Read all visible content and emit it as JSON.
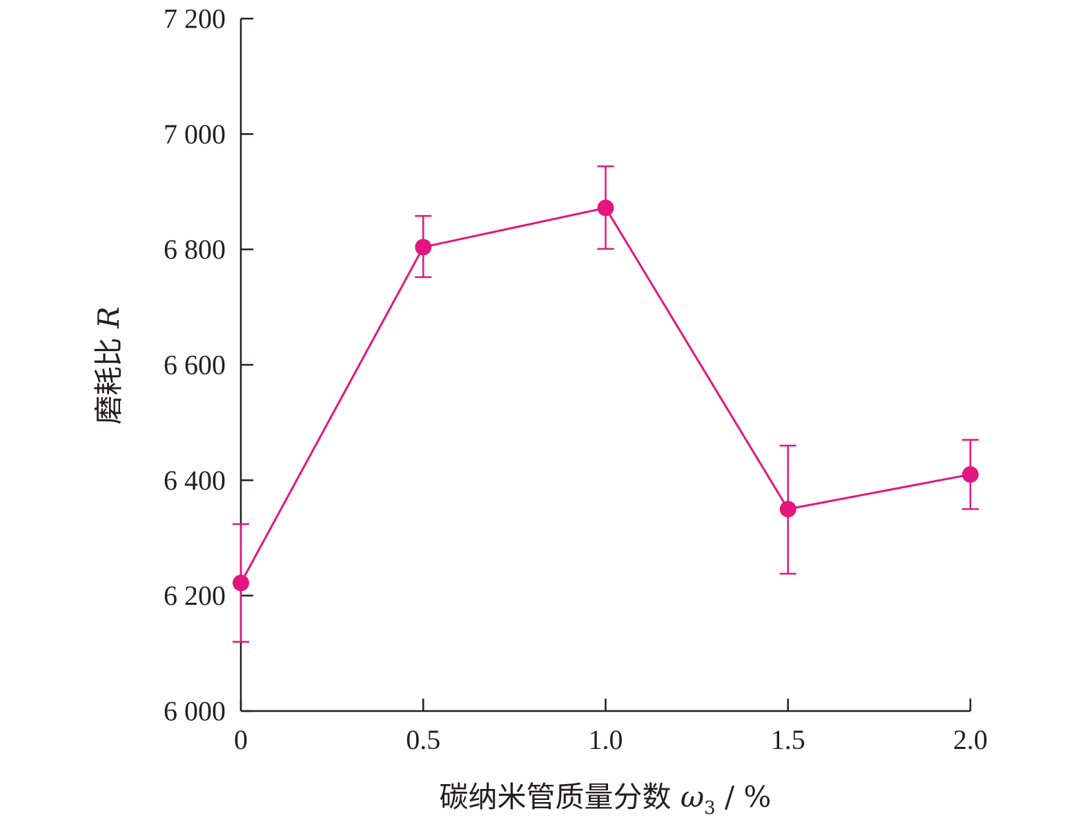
{
  "chart_data": {
    "type": "line",
    "title": "",
    "xlabel": {
      "main": "碳纳米管质量分数 ",
      "symbol": "ω",
      "subscript": "3",
      "unit": " / %"
    },
    "ylabel": {
      "main": "磨耗比 ",
      "symbol": "R"
    },
    "xlim": [
      0,
      2.0
    ],
    "ylim": [
      6000,
      7200
    ],
    "x_ticks": [
      0,
      0.5,
      1.0,
      1.5,
      2.0
    ],
    "x_tick_labels": [
      "0",
      "0.5",
      "1.0",
      "1.5",
      "2.0"
    ],
    "y_ticks": [
      6000,
      6200,
      6400,
      6600,
      6800,
      7000,
      7200
    ],
    "y_tick_labels": [
      "6 000",
      "6 200",
      "6 400",
      "6 600",
      "6 800",
      "7 000",
      "7 200"
    ],
    "grid": false,
    "legend": "none",
    "color": "#e4157f",
    "series": [
      {
        "x": [
          0,
          0.5,
          1.0,
          1.5,
          2.0
        ],
        "y": [
          6222,
          6804,
          6872,
          6350,
          6410
        ],
        "error_low": [
          6120,
          6752,
          6801,
          6238,
          6350
        ],
        "error_high": [
          6324,
          6858,
          6944,
          6460,
          6470
        ]
      }
    ]
  }
}
